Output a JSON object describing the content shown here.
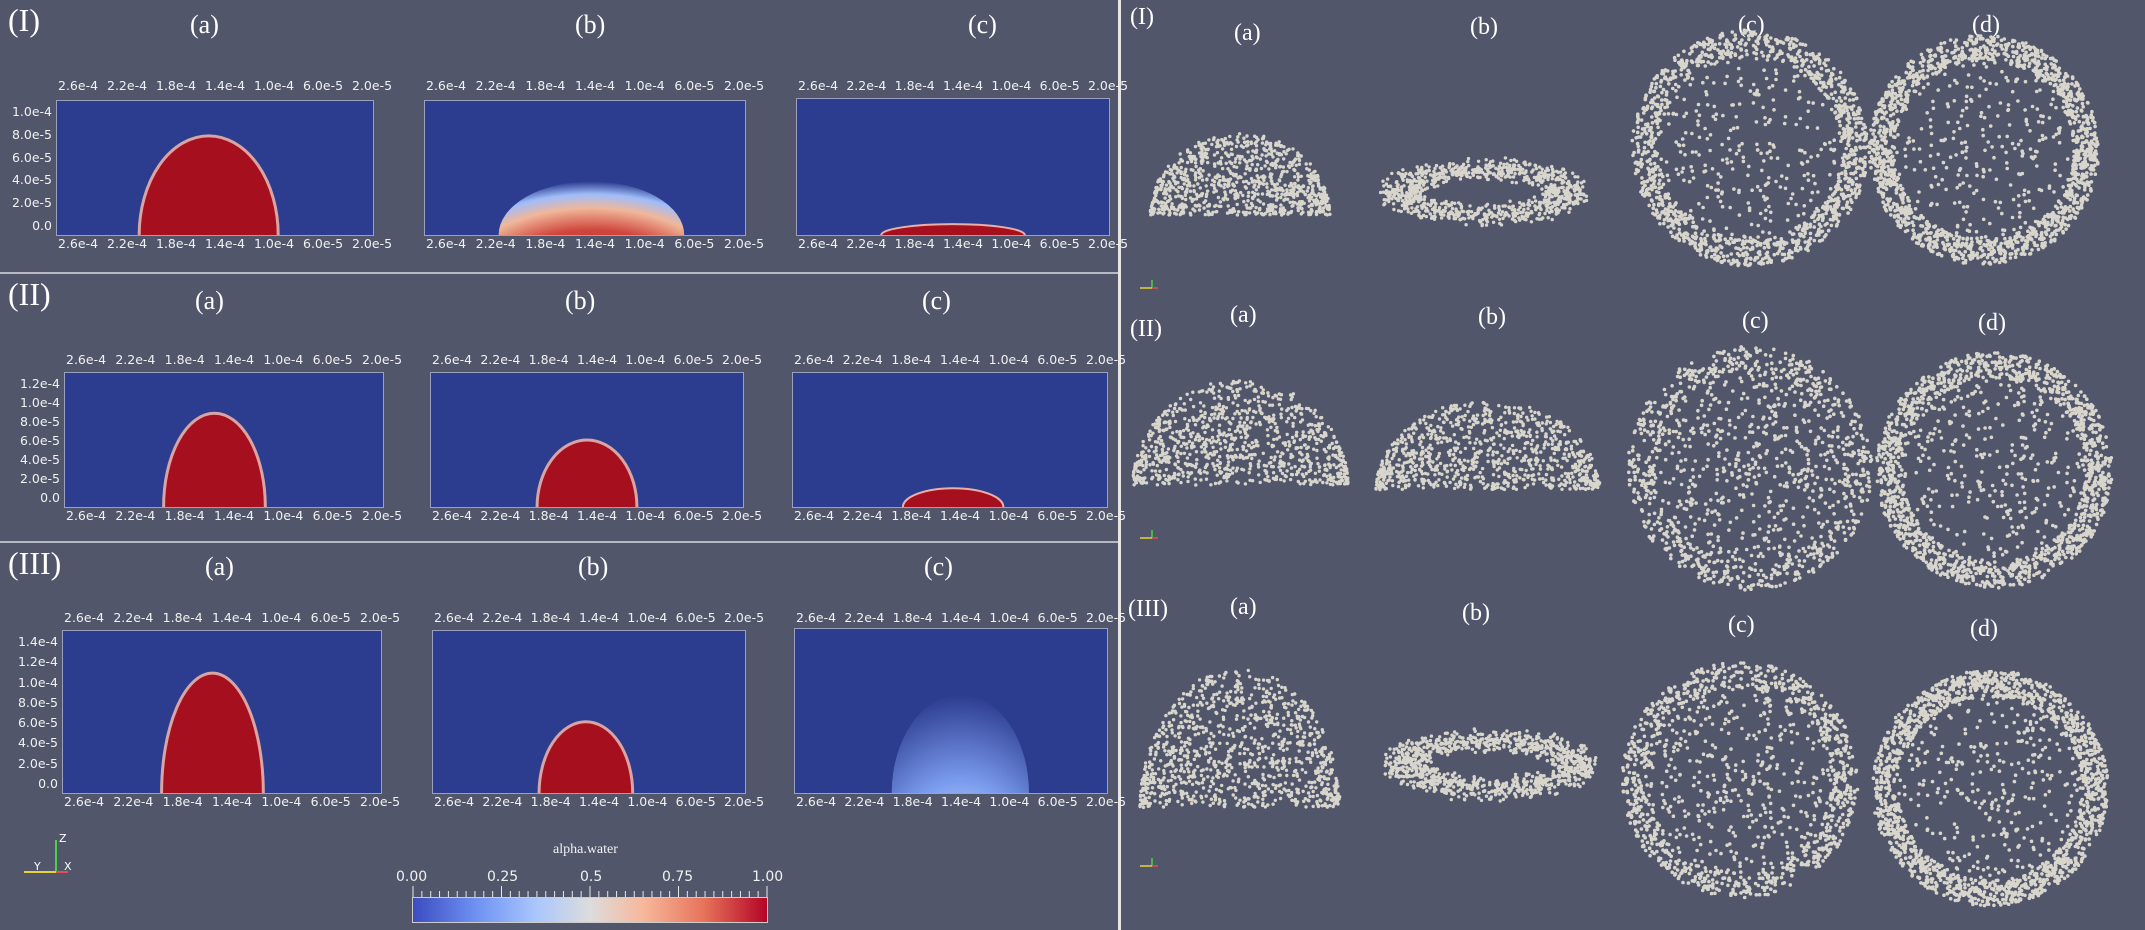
{
  "left": {
    "rows": [
      {
        "label": "(I)",
        "subs": [
          "(a)",
          "(b)",
          "(c)"
        ],
        "xticks": [
          "2.6e-4",
          "2.2e-4",
          "1.8e-4",
          "1.4e-4",
          "1.0e-4",
          "6.0e-5",
          "2.0e-5"
        ],
        "yticks": [
          "1.0e-4",
          "8.0e-5",
          "6.0e-5",
          "4.0e-5",
          "2.0e-5",
          "0.0"
        ]
      },
      {
        "label": "(II)",
        "subs": [
          "(a)",
          "(b)",
          "(c)"
        ],
        "xticks": [
          "2.6e-4",
          "2.2e-4",
          "1.8e-4",
          "1.4e-4",
          "1.0e-4",
          "6.0e-5",
          "2.0e-5"
        ],
        "yticks": [
          "1.2e-4",
          "1.0e-4",
          "8.0e-5",
          "6.0e-5",
          "4.0e-5",
          "2.0e-5",
          "0.0"
        ]
      },
      {
        "label": "(III)",
        "subs": [
          "(a)",
          "(b)",
          "(c)"
        ],
        "xticks": [
          "2.6e-4",
          "2.2e-4",
          "1.8e-4",
          "1.4e-4",
          "1.0e-4",
          "6.0e-5",
          "2.0e-5"
        ],
        "yticks": [
          "1.4e-4",
          "1.2e-4",
          "1.0e-4",
          "8.0e-5",
          "6.0e-5",
          "4.0e-5",
          "2.0e-5",
          "0.0"
        ]
      }
    ],
    "colorbar": {
      "title": "alpha.water",
      "ticks": [
        "0.00",
        "0.25",
        "0.5",
        "0.75",
        "1.00"
      ],
      "range": [
        0,
        1
      ]
    },
    "axis_triad": {
      "z": "Z",
      "y": "Y",
      "x": "X"
    }
  },
  "right": {
    "rows": [
      {
        "label": "(I)",
        "subs": [
          "(a)",
          "(b)",
          "(c)",
          "(d)"
        ]
      },
      {
        "label": "(II)",
        "subs": [
          "(a)",
          "(b)",
          "(c)",
          "(d)"
        ]
      },
      {
        "label": "(III)",
        "subs": [
          "(a)",
          "(b)",
          "(c)",
          "(d)"
        ]
      }
    ]
  },
  "colors": {
    "background": "#52566b",
    "domain_blue": "#2c3c8f",
    "water_red": "#a50f1e",
    "particle": "#d8d6cc"
  }
}
